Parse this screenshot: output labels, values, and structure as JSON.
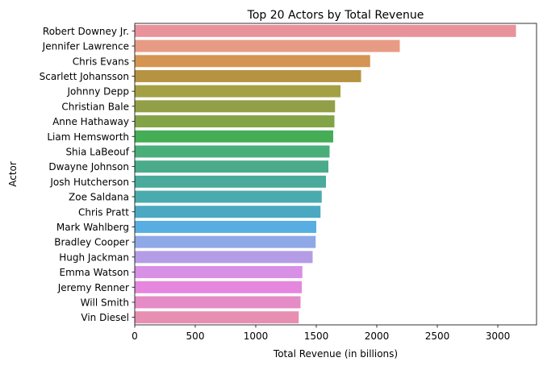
{
  "chart_data": {
    "type": "bar",
    "orientation": "horizontal",
    "title": "Top 20 Actors by Total Revenue",
    "xlabel": "Total Revenue (in billions)",
    "ylabel": "Actor",
    "xlim": [
      0,
      3320
    ],
    "xticks": [
      0,
      500,
      1000,
      1500,
      2000,
      2500,
      3000
    ],
    "grid": false,
    "categories": [
      "Robert Downey Jr.",
      "Jennifer Lawrence",
      "Chris Evans",
      "Scarlett Johansson",
      "Johnny Depp",
      "Christian Bale",
      "Anne Hathaway",
      "Liam Hemsworth",
      "Shia LaBeouf",
      "Dwayne Johnson",
      "Josh Hutcherson",
      "Zoe Saldana",
      "Chris Pratt",
      "Mark Wahlberg",
      "Bradley Cooper",
      "Hugh Jackman",
      "Emma Watson",
      "Jeremy Renner",
      "Will Smith",
      "Vin Diesel"
    ],
    "values": [
      3150,
      2190,
      1945,
      1870,
      1700,
      1655,
      1650,
      1640,
      1610,
      1600,
      1580,
      1545,
      1535,
      1500,
      1495,
      1470,
      1385,
      1380,
      1370,
      1355
    ],
    "colors": [
      "#e8929c",
      "#e89b84",
      "#d49552",
      "#b69340",
      "#a4a044",
      "#929f47",
      "#83a347",
      "#45ad55",
      "#49ae7a",
      "#4aab8a",
      "#4aaa9c",
      "#4aabae",
      "#4aa9c0",
      "#58aee2",
      "#8fa8e8",
      "#b49de6",
      "#d88fe6",
      "#e586df",
      "#e58bc6",
      "#e78fb3"
    ]
  }
}
